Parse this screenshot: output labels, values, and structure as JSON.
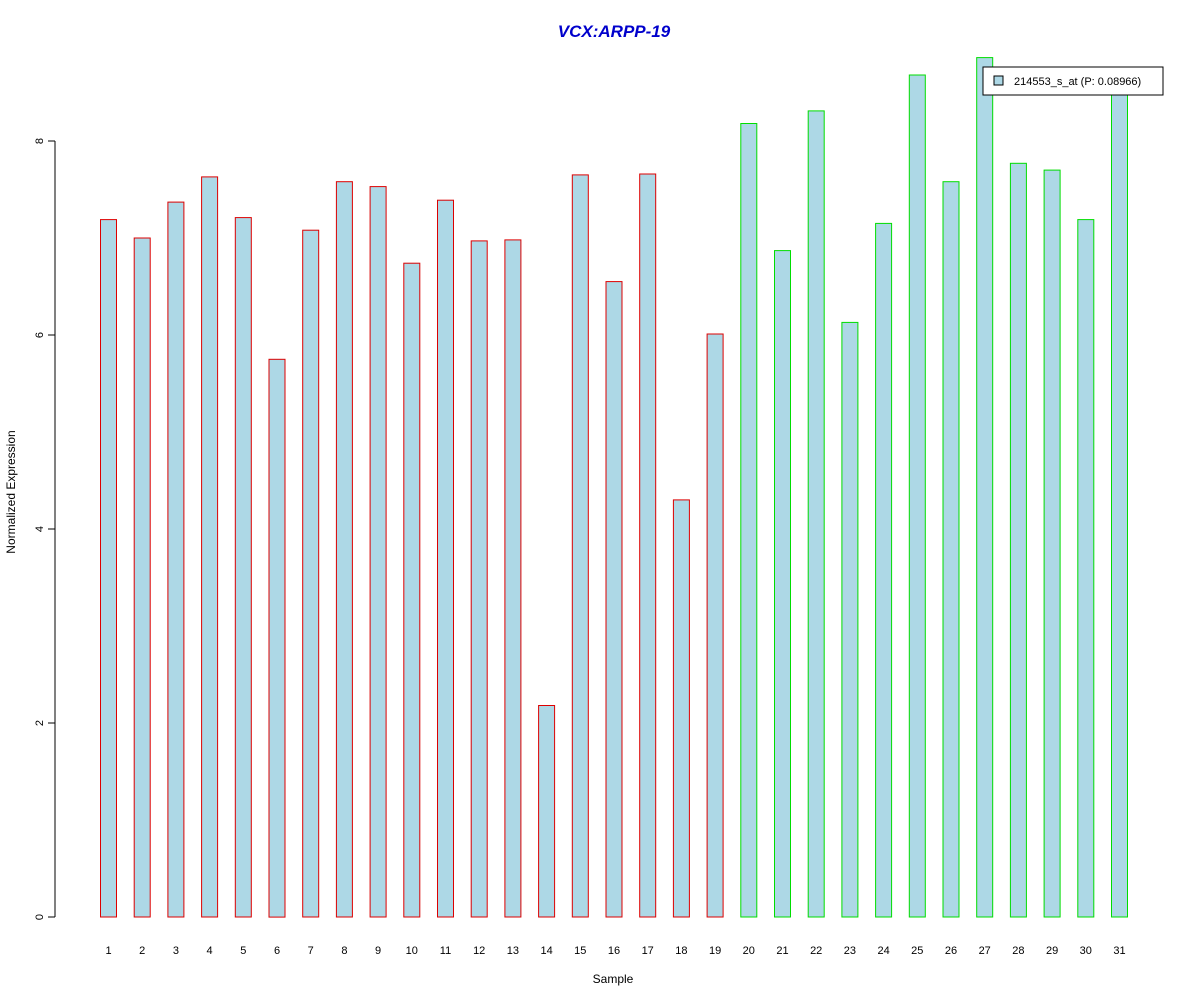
{
  "chart_data": {
    "type": "bar",
    "title": "VCX:ARPP-19",
    "xlabel": "Sample",
    "ylabel": "Normalized Expression",
    "categories": [
      "1",
      "2",
      "3",
      "4",
      "5",
      "6",
      "7",
      "8",
      "9",
      "10",
      "11",
      "12",
      "13",
      "14",
      "15",
      "16",
      "17",
      "18",
      "19",
      "20",
      "21",
      "22",
      "23",
      "24",
      "25",
      "26",
      "27",
      "28",
      "29",
      "30",
      "31"
    ],
    "series": [
      {
        "name": "214553_s_at (P: 0.08966)",
        "values": [
          7.19,
          7.0,
          7.37,
          7.63,
          7.21,
          5.75,
          7.08,
          7.58,
          7.53,
          6.74,
          7.39,
          6.97,
          6.98,
          2.18,
          7.65,
          6.55,
          7.66,
          4.3,
          6.01,
          8.18,
          6.87,
          8.31,
          6.13,
          7.15,
          8.68,
          7.58,
          8.86,
          7.77,
          7.7,
          7.19,
          8.54
        ]
      }
    ],
    "groups": [
      {
        "samples": "1-19",
        "border_color": "#dd0000"
      },
      {
        "samples": "20-31",
        "border_color": "#00dd00"
      }
    ],
    "yticks": [
      "0",
      "2",
      "4",
      "6",
      "8"
    ],
    "ylim": [
      0,
      8.9
    ],
    "legend_position": "top-right",
    "grid": false,
    "colors": {
      "bar_fill": "#add8e6",
      "title": "#0000cc",
      "group1_border": "#dd0000",
      "group2_border": "#00dd00"
    }
  }
}
